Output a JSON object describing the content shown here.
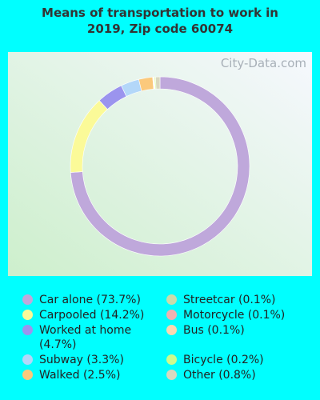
{
  "chart_data": {
    "type": "donut",
    "title": "Means of transportation to work in 2019, Zip code 60074",
    "watermark": "City-Data.com",
    "labels": [
      "Car alone (73.7%)",
      "Carpooled (14.2%)",
      "Worked at home (4.7%)",
      "Subway (3.3%)",
      "Walked (2.5%)",
      "Streetcar (0.1%)",
      "Motorcycle (0.1%)",
      "Bus (0.1%)",
      "Bicycle (0.2%)",
      "Other (0.8%)"
    ],
    "values": [
      73.7,
      14.2,
      4.7,
      3.3,
      2.5,
      0.1,
      0.1,
      0.1,
      0.2,
      0.8
    ],
    "colors": [
      "#bfa8db",
      "#fbfa98",
      "#9b94ee",
      "#b3d7f9",
      "#fbc97c",
      "#c9dcaa",
      "#f1b1b0",
      "#fbd8b1",
      "#cdfb8d",
      "#d9d8bf"
    ]
  }
}
